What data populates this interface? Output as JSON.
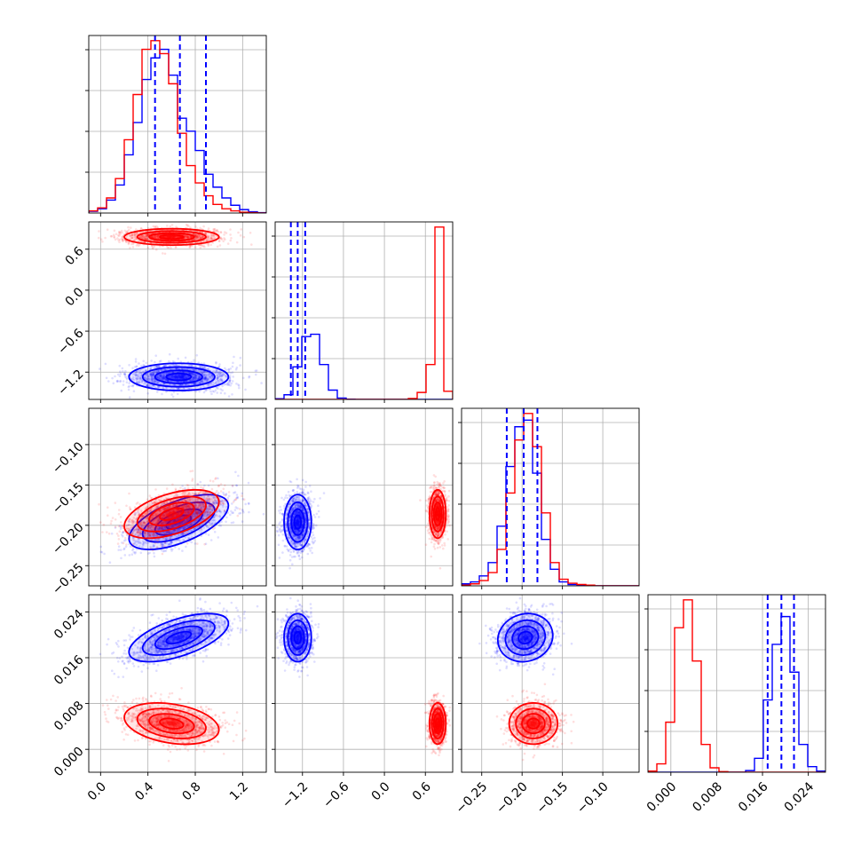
{
  "chart_data": {
    "type": "corner",
    "colors": {
      "series_a": "#0000ff",
      "series_b": "#ff0000"
    },
    "parameters": [
      {
        "range": [
          -0.1,
          1.4
        ],
        "ticks": [
          0.0,
          0.4,
          0.8,
          1.2
        ],
        "tick_labels": [
          "0.0",
          "0.4",
          "0.8",
          "1.2"
        ]
      },
      {
        "range": [
          -1.6,
          1.0
        ],
        "ticks": [
          -1.2,
          -0.6,
          0.0,
          0.6
        ],
        "tick_labels": [
          "−1.2",
          "−0.6",
          "0.0",
          "0.6"
        ]
      },
      {
        "range": [
          -0.275,
          -0.055
        ],
        "ticks": [
          -0.25,
          -0.2,
          -0.15,
          -0.1
        ],
        "tick_labels": [
          "−0.25",
          "−0.20",
          "−0.15",
          "−0.10"
        ]
      },
      {
        "range": [
          -0.004,
          0.027
        ],
        "ticks": [
          0.0,
          0.008,
          0.016,
          0.024
        ],
        "tick_labels": [
          "0.000",
          "0.008",
          "0.016",
          "0.024"
        ]
      }
    ],
    "series": [
      {
        "color": "#0000ff",
        "means": [
          0.66,
          -1.27,
          -0.196,
          0.0195
        ],
        "sds": [
          0.21,
          0.1,
          0.017,
          0.0021
        ],
        "corr": [
          [
            0,
            2,
            0.6
          ],
          [
            0,
            3,
            0.6
          ],
          [
            2,
            3,
            0.1
          ]
        ],
        "quantiles": [
          [
            0.46,
            0.67,
            0.89
          ],
          [
            -1.37,
            -1.27,
            -1.16
          ],
          [
            -0.219,
            -0.198,
            -0.181
          ],
          [
            0.0169,
            0.0193,
            0.0215
          ]
        ]
      },
      {
        "color": "#ff0000",
        "means": [
          0.6,
          0.78,
          -0.186,
          0.0045
        ],
        "sds": [
          0.2,
          0.06,
          0.015,
          0.0018
        ],
        "corr": [
          [
            0,
            2,
            0.5
          ],
          [
            0,
            3,
            -0.3
          ],
          [
            2,
            3,
            0.0
          ]
        ],
        "quantiles": []
      }
    ],
    "histograms": [
      {
        "param": 0,
        "bins": [
          -0.1,
          1.4,
          20
        ],
        "series": [
          [
            0.4,
            1.0,
            3.0,
            6.5,
            13.5,
            21.0,
            31.0,
            36.0,
            38.0,
            32.0,
            22.0,
            19.0,
            14.5,
            9.0,
            6.0,
            3.5,
            1.8,
            0.8,
            0.3,
            0.1
          ],
          [
            0.5,
            1.2,
            3.5,
            8.0,
            17.0,
            27.5,
            38.0,
            40.0,
            37.0,
            30.0,
            18.5,
            11.0,
            7.0,
            4.0,
            2.0,
            1.0,
            0.5,
            0.2,
            0.1,
            0.0
          ]
        ]
      },
      {
        "param": 1,
        "bins": [
          -1.6,
          1.0,
          20
        ],
        "series": [
          [
            0.3,
            2.0,
            14.0,
            27.0,
            28.0,
            15.0,
            4.0,
            0.6,
            0.1,
            0,
            0,
            0,
            0,
            0,
            0,
            0,
            0,
            0,
            0,
            0
          ],
          [
            0,
            0,
            0,
            0,
            0,
            0,
            0,
            0,
            0,
            0,
            0,
            0,
            0,
            0,
            0,
            0.4,
            3.0,
            15.0,
            74.0,
            3.5
          ]
        ]
      },
      {
        "param": 2,
        "bins": [
          -0.275,
          -0.055,
          20
        ],
        "series": [
          [
            0.3,
            0.6,
            1.5,
            3.5,
            9.0,
            18.0,
            24.0,
            25.0,
            17.0,
            7.0,
            2.5,
            0.6,
            0.2,
            0.1,
            0,
            0,
            0,
            0,
            0,
            0
          ],
          [
            0.1,
            0.3,
            0.8,
            2.0,
            5.5,
            14.0,
            22.0,
            26.0,
            21.0,
            11.0,
            3.5,
            1.0,
            0.4,
            0.2,
            0.1,
            0,
            0,
            0,
            0,
            0
          ]
        ]
      },
      {
        "param": 3,
        "bins": [
          -0.004,
          0.027,
          20
        ],
        "series": [
          [
            0,
            0,
            0,
            0,
            0,
            0,
            0,
            0,
            0,
            0,
            0,
            0.3,
            2.5,
            13.0,
            23.0,
            28.0,
            18.0,
            5.0,
            1.0,
            0.2
          ],
          [
            0.2,
            1.5,
            9.0,
            26.0,
            31.0,
            20.0,
            5.0,
            0.8,
            0.1,
            0,
            0,
            0,
            0,
            0,
            0,
            0,
            0,
            0,
            0,
            0
          ]
        ]
      }
    ],
    "grid": true,
    "legend": "none"
  }
}
